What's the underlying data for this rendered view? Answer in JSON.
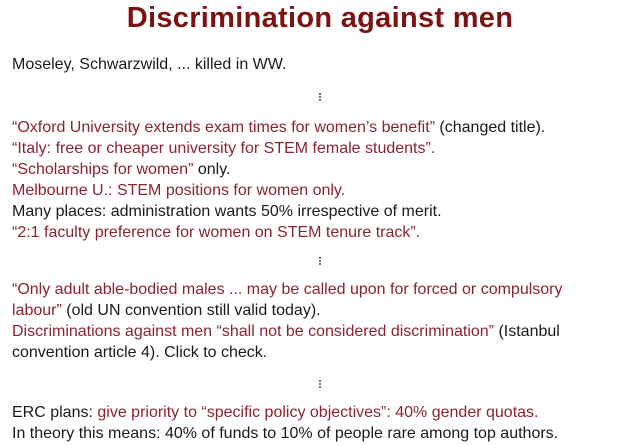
{
  "title": "Discrimination against men",
  "colors": {
    "title": "#7b1313",
    "highlight": "#8a2430",
    "text": "#1a1a1a"
  },
  "lines": [
    [
      {
        "t": "Moseley, Schwarzwild, ... killed in WW.",
        "c": "blk"
      }
    ],
    "vdots",
    [
      {
        "t": "“Oxford University extends exam times for women’s benefit”",
        "c": "red"
      },
      {
        "t": " (changed title).",
        "c": "blk"
      }
    ],
    [
      {
        "t": "“Italy: free or cheaper university for STEM female students”.",
        "c": "red"
      }
    ],
    [
      {
        "t": "“Scholarships for women”",
        "c": "red"
      },
      {
        "t": " only.",
        "c": "blk"
      }
    ],
    [
      {
        "t": "Melbourne U.: STEM positions for women only.",
        "c": "red"
      }
    ],
    [
      {
        "t": "Many places: administration wants 50% irrespective of merit.",
        "c": "blk"
      }
    ],
    [
      {
        "t": "“2:1 faculty preference for women on STEM tenure track”.",
        "c": "red"
      }
    ],
    "vdots",
    [
      {
        "t": "“Only adult able-bodied males ... may be called upon for forced or compulsory",
        "c": "red"
      }
    ],
    [
      {
        "t": "labour”",
        "c": "red"
      },
      {
        "t": " (old UN convention still valid today).",
        "c": "blk"
      }
    ],
    [
      {
        "t": "Discriminations against men “shall not be considered discrimination”",
        "c": "red"
      },
      {
        "t": " (Istanbul",
        "c": "blk"
      }
    ],
    [
      {
        "t": "convention article 4). Click to check.",
        "c": "blk"
      }
    ],
    "vdots",
    [
      {
        "t": "ERC plans: ",
        "c": "blk"
      },
      {
        "t": "give priority to “specific policy objectives”: 40% gender quotas.",
        "c": "red"
      }
    ],
    [
      {
        "t": "In theory this means: 40% of funds to 10% of people rare among top authors.",
        "c": "blk"
      }
    ]
  ]
}
